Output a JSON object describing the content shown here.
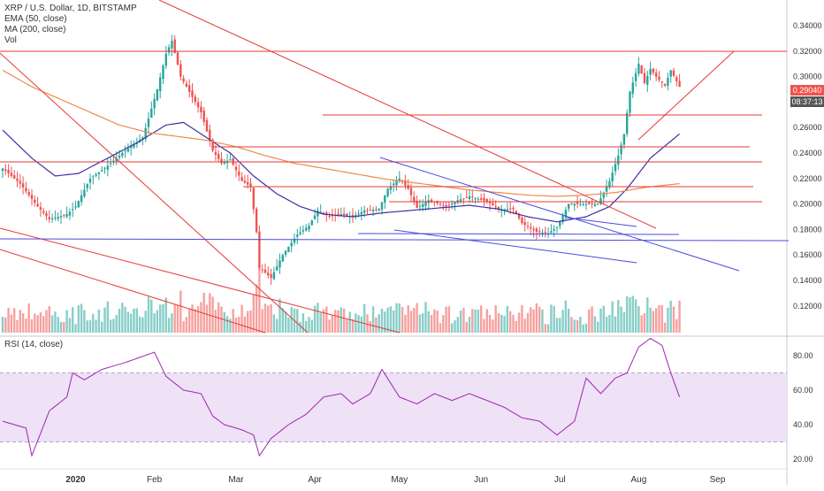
{
  "header": {
    "symbol_line": "XRP / U.S. Dollar, 1D, BITSTAMP",
    "ema_label": "EMA (50, close)",
    "ma_label": "MA (200, close)",
    "vol_label": "Vol"
  },
  "rsi_panel": {
    "label": "RSI (14, close)"
  },
  "price_boxes": {
    "last_price": "0.29040",
    "countdown": "08:37:13"
  },
  "colors": {
    "up": "#26a69a",
    "down": "#ef5350",
    "ema": "#3f2fa6",
    "ma": "#f08a4b",
    "drawn_red": "#e53935",
    "drawn_blue": "#4a4ae0",
    "rsi_line": "#9c27b0",
    "rsi_band": "#ecdcf5"
  },
  "chart_data": [
    {
      "type": "candlestick",
      "title": "XRP / U.S. Dollar, 1D, BITSTAMP",
      "price_axis_ticks": [
        "0.34000",
        "0.32000",
        "0.30000",
        "0.28000",
        "0.26000",
        "0.24000",
        "0.22000",
        "0.20000",
        "0.18000",
        "0.16000",
        "0.14000",
        "0.12000"
      ],
      "x_month_labels": [
        "2020",
        "Feb",
        "Mar",
        "Apr",
        "May",
        "Jun",
        "Jul",
        "Aug",
        "Sep"
      ],
      "ylim": [
        0.1,
        0.35
      ],
      "grid": false,
      "last_price": 0.2904,
      "anchors_close": [
        [
          0,
          0.228
        ],
        [
          6,
          0.216
        ],
        [
          12,
          0.198
        ],
        [
          16,
          0.188
        ],
        [
          22,
          0.192
        ],
        [
          25,
          0.198
        ],
        [
          30,
          0.22
        ],
        [
          36,
          0.23
        ],
        [
          42,
          0.242
        ],
        [
          48,
          0.252
        ],
        [
          53,
          0.29
        ],
        [
          56,
          0.318
        ],
        [
          58,
          0.328
        ],
        [
          61,
          0.3
        ],
        [
          64,
          0.288
        ],
        [
          68,
          0.272
        ],
        [
          72,
          0.242
        ],
        [
          75,
          0.232
        ],
        [
          78,
          0.235
        ],
        [
          82,
          0.218
        ],
        [
          85,
          0.214
        ],
        [
          87,
          0.178
        ],
        [
          88,
          0.15
        ],
        [
          92,
          0.142
        ],
        [
          96,
          0.16
        ],
        [
          101,
          0.176
        ],
        [
          105,
          0.183
        ],
        [
          108,
          0.195
        ],
        [
          112,
          0.19
        ],
        [
          116,
          0.192
        ],
        [
          120,
          0.19
        ],
        [
          124,
          0.195
        ],
        [
          129,
          0.196
        ],
        [
          132,
          0.212
        ],
        [
          136,
          0.22
        ],
        [
          139,
          0.212
        ],
        [
          142,
          0.197
        ],
        [
          146,
          0.203
        ],
        [
          152,
          0.198
        ],
        [
          156,
          0.203
        ],
        [
          160,
          0.206
        ],
        [
          166,
          0.202
        ],
        [
          170,
          0.196
        ],
        [
          175,
          0.196
        ],
        [
          178,
          0.185
        ],
        [
          183,
          0.178
        ],
        [
          187,
          0.177
        ],
        [
          190,
          0.182
        ],
        [
          194,
          0.2
        ],
        [
          199,
          0.2
        ],
        [
          204,
          0.2
        ],
        [
          208,
          0.218
        ],
        [
          211,
          0.238
        ],
        [
          213,
          0.255
        ],
        [
          215,
          0.288
        ],
        [
          218,
          0.31
        ],
        [
          220,
          0.295
        ],
        [
          222,
          0.306
        ],
        [
          224,
          0.3
        ],
        [
          227,
          0.293
        ],
        [
          229,
          0.305
        ],
        [
          232,
          0.292
        ]
      ],
      "ema_50_anchors": [
        [
          0,
          0.258
        ],
        [
          10,
          0.236
        ],
        [
          18,
          0.222
        ],
        [
          26,
          0.224
        ],
        [
          36,
          0.236
        ],
        [
          46,
          0.248
        ],
        [
          56,
          0.262
        ],
        [
          62,
          0.264
        ],
        [
          70,
          0.252
        ],
        [
          78,
          0.24
        ],
        [
          86,
          0.222
        ],
        [
          94,
          0.208
        ],
        [
          102,
          0.198
        ],
        [
          110,
          0.192
        ],
        [
          120,
          0.19
        ],
        [
          130,
          0.193
        ],
        [
          140,
          0.195
        ],
        [
          150,
          0.197
        ],
        [
          160,
          0.199
        ],
        [
          170,
          0.196
        ],
        [
          180,
          0.19
        ],
        [
          190,
          0.186
        ],
        [
          200,
          0.19
        ],
        [
          208,
          0.198
        ],
        [
          214,
          0.212
        ],
        [
          222,
          0.236
        ],
        [
          232,
          0.255
        ]
      ],
      "ma_200_anchors": [
        [
          0,
          0.305
        ],
        [
          10,
          0.292
        ],
        [
          20,
          0.282
        ],
        [
          30,
          0.272
        ],
        [
          40,
          0.262
        ],
        [
          50,
          0.256
        ],
        [
          60,
          0.253
        ],
        [
          70,
          0.25
        ],
        [
          80,
          0.245
        ],
        [
          90,
          0.238
        ],
        [
          100,
          0.232
        ],
        [
          110,
          0.228
        ],
        [
          120,
          0.224
        ],
        [
          130,
          0.22
        ],
        [
          140,
          0.217
        ],
        [
          150,
          0.214
        ],
        [
          160,
          0.211
        ],
        [
          170,
          0.209
        ],
        [
          180,
          0.207
        ],
        [
          190,
          0.206
        ],
        [
          200,
          0.207
        ],
        [
          210,
          0.209
        ],
        [
          220,
          0.213
        ],
        [
          232,
          0.216
        ]
      ],
      "rsi_anchors": [
        [
          0,
          42
        ],
        [
          8,
          38
        ],
        [
          10,
          22
        ],
        [
          16,
          48
        ],
        [
          22,
          56
        ],
        [
          24,
          70
        ],
        [
          28,
          66
        ],
        [
          34,
          72
        ],
        [
          42,
          76
        ],
        [
          52,
          82
        ],
        [
          56,
          68
        ],
        [
          62,
          60
        ],
        [
          68,
          58
        ],
        [
          72,
          45
        ],
        [
          76,
          40
        ],
        [
          82,
          37
        ],
        [
          86,
          34
        ],
        [
          88,
          22
        ],
        [
          92,
          32
        ],
        [
          98,
          40
        ],
        [
          104,
          46
        ],
        [
          110,
          56
        ],
        [
          116,
          58
        ],
        [
          120,
          52
        ],
        [
          126,
          58
        ],
        [
          130,
          72
        ],
        [
          136,
          56
        ],
        [
          142,
          52
        ],
        [
          148,
          58
        ],
        [
          154,
          54
        ],
        [
          160,
          58
        ],
        [
          166,
          54
        ],
        [
          172,
          50
        ],
        [
          178,
          44
        ],
        [
          184,
          42
        ],
        [
          190,
          34
        ],
        [
          196,
          42
        ],
        [
          200,
          67
        ],
        [
          205,
          58
        ],
        [
          210,
          67
        ],
        [
          214,
          70
        ],
        [
          218,
          85
        ],
        [
          222,
          90
        ],
        [
          226,
          86
        ],
        [
          229,
          70
        ],
        [
          232,
          56
        ]
      ],
      "rsi_ylim": [
        15,
        95
      ],
      "rsi_band": [
        30,
        70
      ],
      "rsi_ticks": [
        "80.00",
        "60.00",
        "40.00",
        "20.00"
      ]
    }
  ]
}
